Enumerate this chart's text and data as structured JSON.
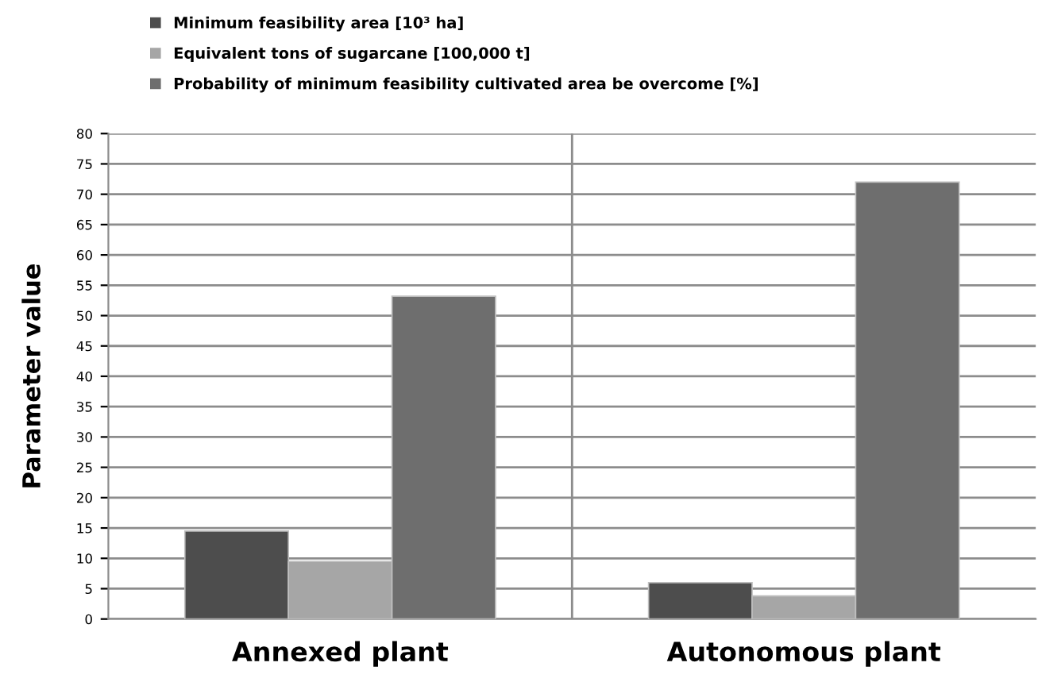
{
  "chart_data": {
    "type": "bar",
    "categories": [
      "Annexed plant",
      "Autonomous plant"
    ],
    "ylabel": "Parameter value",
    "series": [
      {
        "name": "Minimum feasibility area [10³ ha]",
        "color": "#4d4d4d",
        "values": [
          14.5,
          6
        ]
      },
      {
        "name": "Equivalent tons of sugarcane [100,000 t]",
        "color": "#a6a6a6",
        "values": [
          9.5,
          3.8
        ]
      },
      {
        "name": "Probability of minimum feasibility cultivated area be overcome [%]",
        "color": "#6e6e6e",
        "values": [
          53.2,
          72
        ]
      }
    ],
    "ylim": [
      0,
      80
    ],
    "yticks": [
      0,
      5,
      10,
      15,
      20,
      25,
      30,
      35,
      40,
      45,
      50,
      55,
      60,
      65,
      70,
      75,
      80
    ],
    "grid": true,
    "legend": "top left"
  }
}
